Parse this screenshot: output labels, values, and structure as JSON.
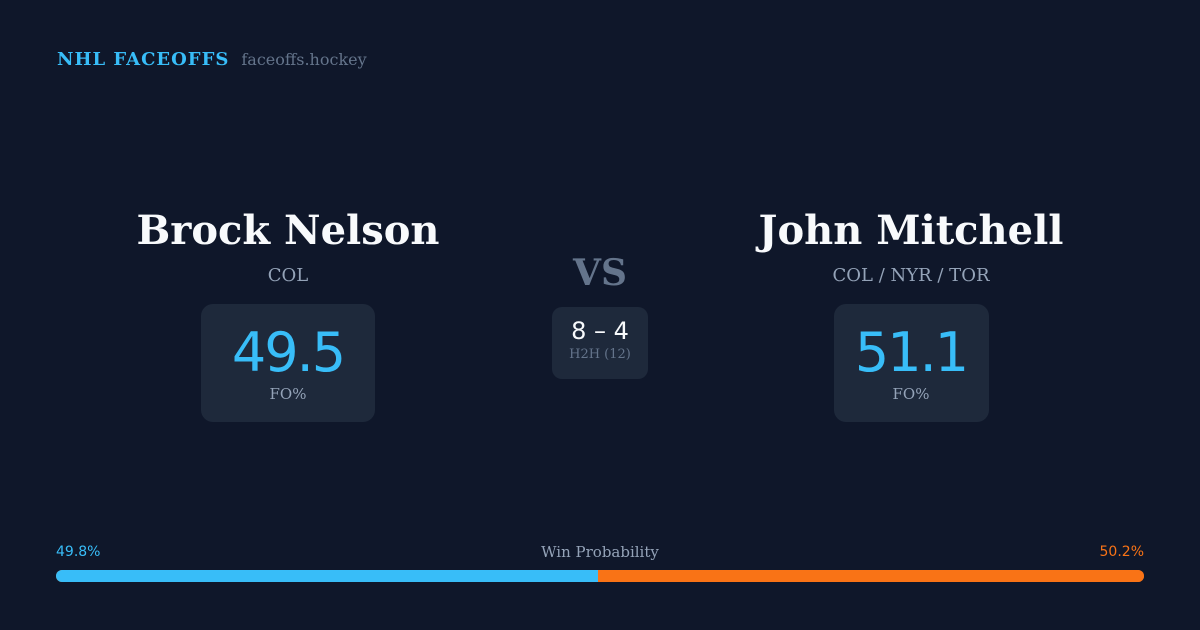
{
  "brand": {
    "name": "NHL FACEOFFS",
    "url": "faceoffs.hockey"
  },
  "player1": {
    "name": "Brock Nelson",
    "team": "COL",
    "fo_pct": "49.5",
    "fo_label": "FO%"
  },
  "player2": {
    "name": "John Mitchell",
    "team": "COL / NYR / TOR",
    "fo_pct": "51.1",
    "fo_label": "FO%"
  },
  "vs": "VS",
  "h2h": {
    "score": "8 – 4",
    "label": "H2H (12)"
  },
  "win_probability": {
    "title": "Win Probability",
    "left": "49.8%",
    "right": "50.2%",
    "left_value": 49.8,
    "right_value": 50.2,
    "colors": {
      "left": "#38bdf8",
      "right": "#f97316"
    }
  }
}
